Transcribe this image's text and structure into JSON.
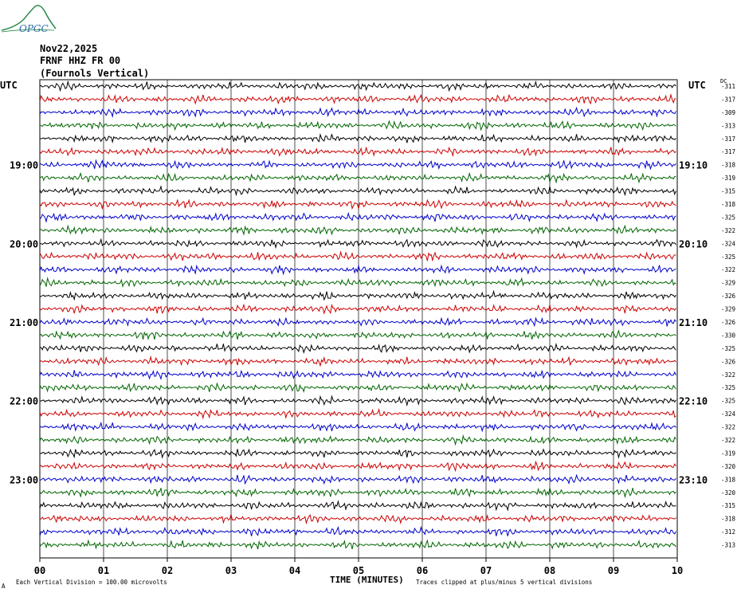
{
  "header": {
    "date": "Nov22,2025",
    "station": "FRNF HHZ FR 00",
    "location": "(Fournols Vertical)",
    "left_tz": "UTC",
    "right_tz": "UTC",
    "dc_label": "DC"
  },
  "logo": {
    "text": "OPGC",
    "color": "#2a8a4a"
  },
  "footer": {
    "division": "Each Vertical Division =  100.00 microvolts",
    "clip": "Traces clipped at plus/minus 5 vertical divisions",
    "mark": "A"
  },
  "chart_data": {
    "type": "line",
    "xlabel": "TIME (MINUTES)",
    "x_ticks": [
      "00",
      "01",
      "02",
      "03",
      "04",
      "05",
      "06",
      "07",
      "08",
      "09",
      "10"
    ],
    "xlim": [
      0,
      10
    ],
    "trace_colors": [
      "#000000",
      "#cc0000",
      "#0000cc",
      "#006600"
    ],
    "left_hour_labels": [
      {
        "trace_index": 6,
        "label": "19:00"
      },
      {
        "trace_index": 12,
        "label": "20:00"
      },
      {
        "trace_index": 18,
        "label": "21:00"
      },
      {
        "trace_index": 24,
        "label": "22:00"
      },
      {
        "trace_index": 30,
        "label": "23:00"
      }
    ],
    "right_hour_labels": [
      {
        "trace_index": 6,
        "label": "19:10"
      },
      {
        "trace_index": 12,
        "label": "20:10"
      },
      {
        "trace_index": 18,
        "label": "21:10"
      },
      {
        "trace_index": 24,
        "label": "22:10"
      },
      {
        "trace_index": 30,
        "label": "23:10"
      }
    ],
    "dc_offsets": [
      "-311",
      "-317",
      "-309",
      "-313",
      "-317",
      "-317",
      "-318",
      "-319",
      "-315",
      "-318",
      "-325",
      "-322",
      "-324",
      "-325",
      "-322",
      "-329",
      "-326",
      "-329",
      "-326",
      "-330",
      "-325",
      "-326",
      "-322",
      "-325",
      "-325",
      "-324",
      "-322",
      "-322",
      "-319",
      "-320",
      "-318",
      "-320",
      "-315",
      "-318",
      "-312",
      "-313"
    ],
    "grid": true
  }
}
